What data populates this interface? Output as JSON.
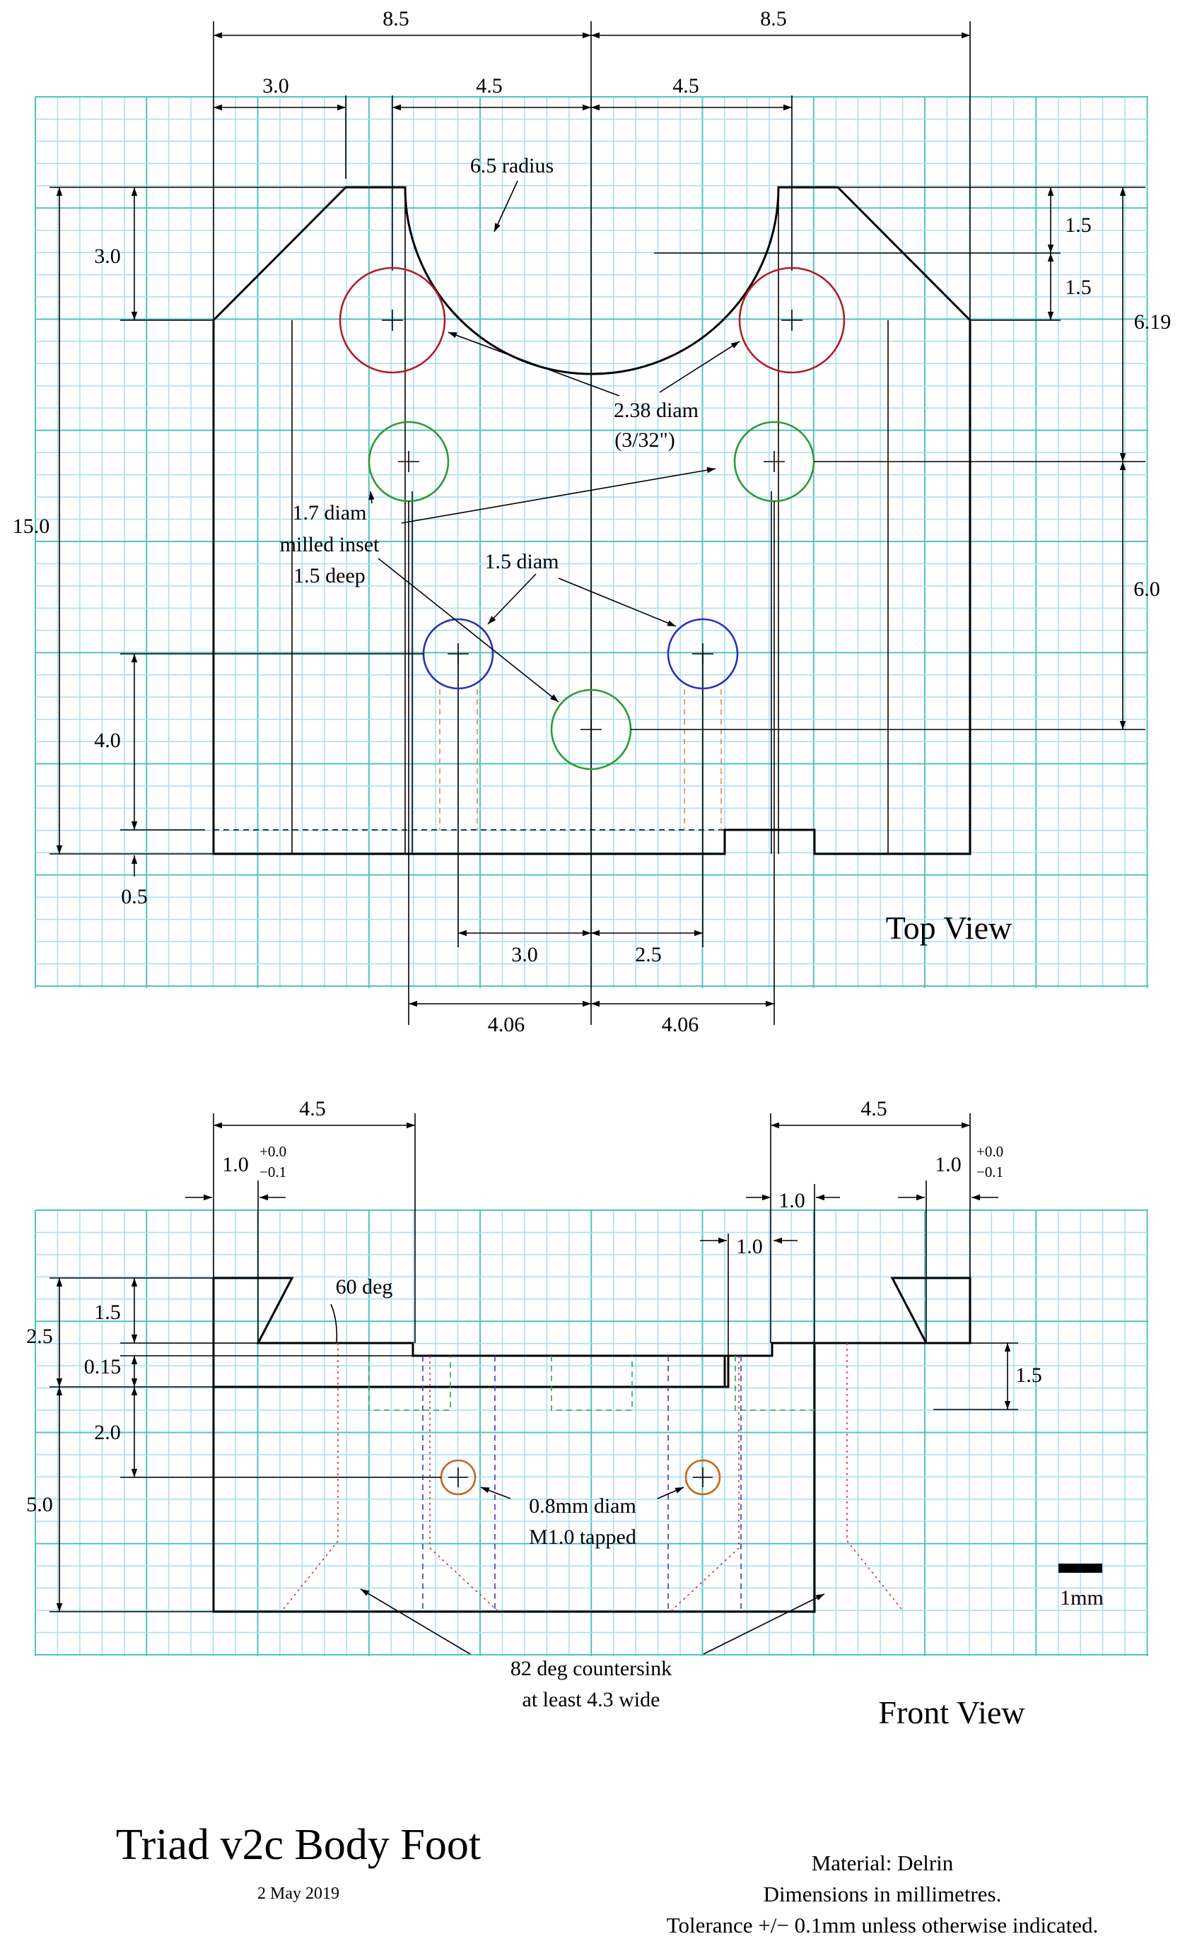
{
  "title": "Triad v2c Body Foot",
  "date": "2 May 2019",
  "footer": {
    "material": "Material: Delrin",
    "units": "Dimensions in millimetres.",
    "tolerance": "Tolerance +/− 0.1mm unless otherwise indicated."
  },
  "top_view": {
    "title": "Top View",
    "dims": {
      "half_left": "8.5",
      "half_right": "8.5",
      "chamfer_left": "3.0",
      "hole_left": "4.5",
      "hole_right": "4.5",
      "chamfer_depth": "3.0",
      "overall_height": "15.0",
      "right_upper_1": "1.5",
      "right_upper_2": "1.5",
      "right_6_19": "6.19",
      "right_6_0": "6.0",
      "left_4_0": "4.0",
      "left_0_5": "0.5",
      "blue_left": "3.0",
      "blue_right": "2.5",
      "green_left": "4.06",
      "green_right": "4.06"
    },
    "notes": {
      "radius": "6.5 radius",
      "big_hole_l1": "2.38 diam",
      "big_hole_l2": "(3/32\")",
      "inset_l1": "1.7 diam",
      "inset_l2": "milled inset",
      "inset_l3": "1.5 deep",
      "small_hole": "1.5 diam"
    }
  },
  "front_view": {
    "title": "Front View",
    "dims": {
      "top_left": "4.5",
      "top_right": "4.5",
      "lip_left": "1.0",
      "lip_right": "1.0",
      "tol_plus": "+0.0",
      "tol_minus": "−0.1",
      "slot_1": "1.0",
      "slot_2": "1.0",
      "left_1_5": "1.5",
      "left_2_5": "2.5",
      "left_0_15": "0.15",
      "left_2_0": "2.0",
      "left_5_0": "5.0",
      "right_1_5": "1.5"
    },
    "notes": {
      "angle": "60 deg",
      "tap_l1": "0.8mm diam",
      "tap_l2": "M1.0 tapped",
      "scale": "1mm",
      "csk_l1": "82 deg countersink",
      "csk_l2": "at least 4.3 wide"
    }
  },
  "colors": {
    "grid_minor": "#a9dcf4",
    "grid_major": "#52c3bf",
    "hole_red": "#b21e23",
    "hole_green": "#2d9a35",
    "hole_blue": "#2a2fc1",
    "hole_orange": "#c7651a"
  }
}
